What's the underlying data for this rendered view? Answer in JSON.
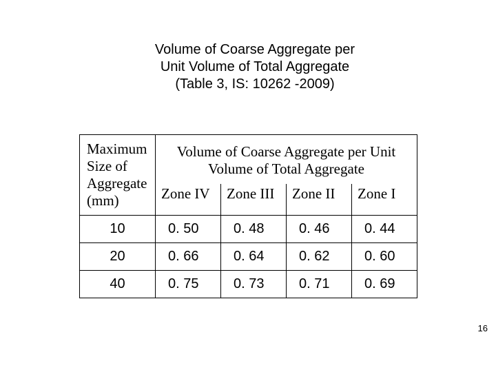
{
  "title": {
    "line1": "Volume of Coarse Aggregate per",
    "line2": "Unit Volume of Total Aggregate",
    "line3": "(Table 3, IS: 10262 -2009)"
  },
  "table": {
    "row_header": "Maximum Size of Aggregate (mm)",
    "super_header_line1": "Volume of Coarse Aggregate per Unit",
    "super_header_line2": "Volume of Total Aggregate",
    "zones": [
      "Zone IV",
      "Zone III",
      "Zone II",
      "Zone I"
    ],
    "rows": [
      {
        "size": "10",
        "vals": [
          "0. 50",
          "0. 48",
          "0. 46",
          "0. 44"
        ]
      },
      {
        "size": "20",
        "vals": [
          "0. 66",
          "0. 64",
          "0. 62",
          "0. 60"
        ]
      },
      {
        "size": "40",
        "vals": [
          "0. 75",
          "0. 73",
          "0. 71",
          "0. 69"
        ]
      }
    ]
  },
  "colors": {
    "border": "#000000",
    "bg": "#ffffff",
    "text": "#000000"
  },
  "fonts": {
    "title_family": "Arial",
    "title_size_pt": 15,
    "table_serif_family": "Times New Roman",
    "table_serif_size_pt": 16,
    "table_sans_size_pt": 15
  },
  "page_number": "16"
}
